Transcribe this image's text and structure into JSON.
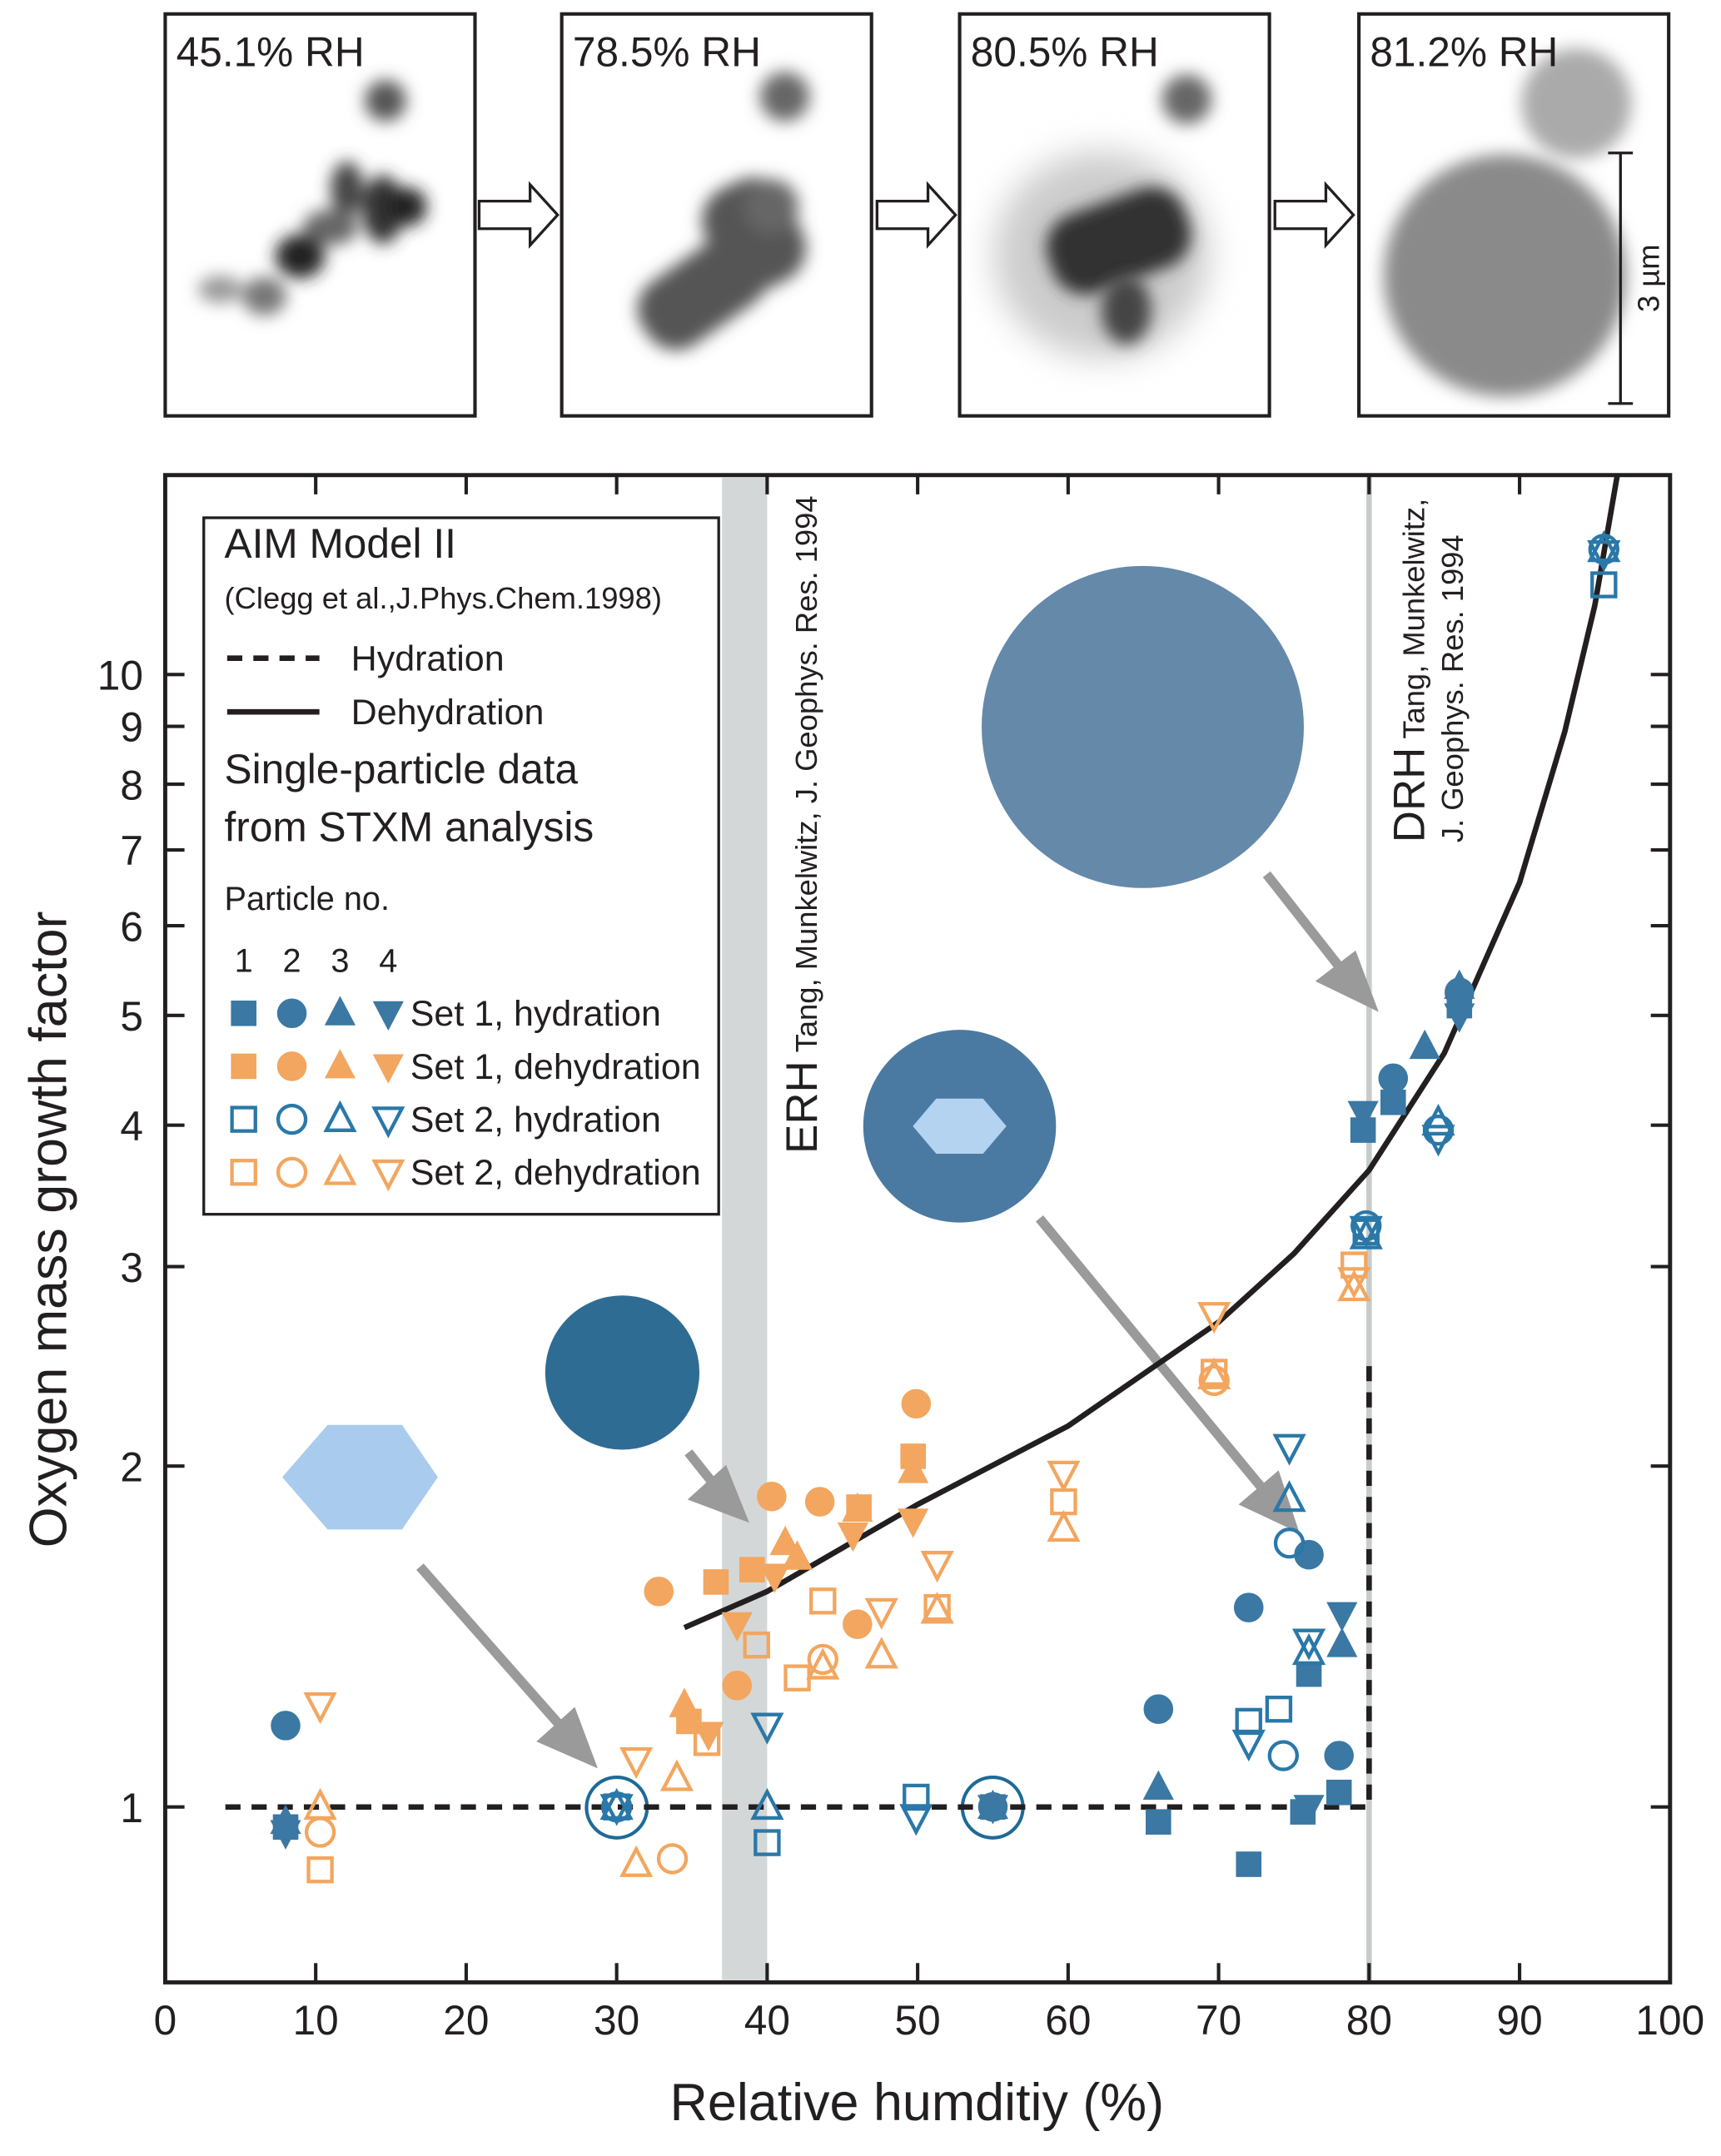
{
  "panels": [
    {
      "label": "45.1% RH"
    },
    {
      "label": "78.5% RH"
    },
    {
      "label": "80.5% RH"
    },
    {
      "label": "81.2% RH",
      "scale_bar": "3 µm"
    }
  ],
  "chart_data": {
    "type": "scatter",
    "xlabel": "Relative humditiy (%)",
    "ylabel": "Oxygen mass growth factor",
    "xlim": [
      0,
      100
    ],
    "xticks": [
      0,
      10,
      20,
      30,
      40,
      50,
      60,
      70,
      80,
      90,
      100
    ],
    "ylim": [
      0.7,
      15
    ],
    "yticks": [
      1,
      2,
      3,
      4,
      5,
      6,
      7,
      8,
      9,
      10
    ],
    "log_y": true,
    "legend": "top-left",
    "markers": [
      "square",
      "circle",
      "triangle",
      "triangle-down"
    ],
    "legend_title": "Single-particle data",
    "legend_subtitle": "from STXM analysis",
    "particle_heading": "Particle no.",
    "particle_numbers": [
      "1",
      "2",
      "3",
      "4"
    ],
    "erh_range": [
      37,
      40
    ],
    "erh_label": "ERH",
    "erh_reference": "Tang, Munkelwitz, J. Geophys. Res. 1994",
    "drh": 80,
    "drh_label": "DRH",
    "drh_reference": [
      "Tang, Munkelwitz,",
      "J. Geophys. Res. 1994"
    ],
    "model": {
      "title": "AIM Model II",
      "citation": "(Clegg et al.,J.Phys.Chem.1998)",
      "curves": [
        {
          "name": "Hydration",
          "style": "dashed",
          "color": "#231f20",
          "x": [
            4,
            80,
            80
          ],
          "values": [
            1,
            1,
            2.5
          ]
        },
        {
          "name": "Dehydration",
          "style": "solid",
          "color": "#231f20",
          "x": [
            34.5,
            40,
            50,
            60,
            70,
            75,
            80,
            85,
            90,
            93,
            95,
            96.5
          ],
          "values": [
            1.44,
            1.55,
            1.85,
            2.17,
            2.68,
            3.08,
            3.65,
            4.63,
            6.55,
            8.9,
            11.5,
            15
          ]
        }
      ]
    },
    "series": [
      {
        "name": "Set 1, hydration",
        "color": "#3b78a3",
        "filled": true,
        "particle": [
          1,
          2,
          3,
          4,
          1,
          2,
          3,
          4,
          2,
          3,
          1,
          2,
          1,
          1,
          1,
          1,
          3,
          4,
          2,
          2,
          4,
          1,
          4,
          1,
          2,
          3,
          1,
          2,
          3,
          4
        ],
        "x": [
          8,
          8,
          8,
          8,
          55,
          55,
          55,
          55,
          66,
          66,
          66,
          72,
          72,
          75.6,
          78,
          76,
          78.2,
          78.2,
          76,
          78,
          76,
          79.6,
          79.6,
          81.6,
          81.6,
          83.7,
          86,
          86,
          86,
          86
        ],
        "values": [
          0.96,
          1.18,
          0.97,
          0.95,
          1.0,
          1.0,
          1.0,
          1.0,
          1.22,
          1.04,
          0.97,
          1.5,
          0.89,
          0.99,
          1.03,
          1.31,
          1.39,
          1.48,
          1.67,
          1.11,
          1.0,
          3.96,
          4.1,
          4.19,
          4.4,
          4.69,
          5.1,
          5.24,
          5.3,
          5.0
        ]
      },
      {
        "name": "Set 1, dehydration",
        "color": "#f2a65f",
        "filled": true,
        "particle": [
          2,
          2,
          2,
          2,
          2,
          2,
          1,
          1,
          1,
          1,
          1,
          3,
          3,
          3,
          3,
          3,
          4,
          4,
          4,
          4,
          4
        ],
        "x": [
          32.8,
          40.3,
          43.5,
          49.9,
          38,
          46,
          36.6,
          49.7,
          46.1,
          34.8,
          39,
          41.2,
          49.7,
          34.5,
          46,
          42,
          38,
          49.7,
          45.7,
          36.1,
          40.5
        ],
        "values": [
          1.55,
          1.88,
          1.86,
          2.27,
          1.28,
          1.45,
          1.58,
          2.04,
          1.84,
          1.19,
          1.62,
          1.71,
          1.98,
          1.23,
          1.83,
          1.66,
          1.45,
          1.79,
          1.74,
          1.16,
          1.6
        ]
      },
      {
        "name": "Set 2, hydration",
        "color": "#2a78a8",
        "filled": false,
        "particle": [
          1,
          2,
          3,
          4,
          1,
          3,
          4,
          1,
          4,
          1,
          1,
          2,
          2,
          3,
          4,
          4,
          3,
          4,
          1,
          2,
          3,
          4,
          2,
          3,
          4,
          1,
          2,
          3,
          4
        ],
        "x": [
          30,
          30,
          30,
          30,
          40,
          40,
          40,
          49.9,
          49.9,
          72,
          74,
          74.3,
          74.7,
          74.7,
          74.7,
          72,
          76,
          76,
          79.8,
          79.8,
          79.8,
          79.8,
          84.6,
          84.6,
          84.6,
          95.6,
          95.6,
          95.6,
          95.6
        ],
        "values": [
          1.0,
          1.0,
          1.0,
          1.0,
          0.93,
          1.0,
          1.18,
          1.02,
          0.98,
          1.19,
          1.22,
          1.11,
          1.71,
          1.87,
          2.08,
          1.14,
          1.37,
          1.4,
          3.22,
          3.26,
          3.19,
          3.24,
          3.96,
          4.02,
          3.9,
          12.0,
          12.9,
          12.9,
          12.8
        ]
      },
      {
        "name": "Set 2, dehydration",
        "color": "#f2a65f",
        "filled": false,
        "particle": [
          1,
          2,
          3,
          4,
          3,
          2,
          4,
          1,
          3,
          1,
          1,
          2,
          3,
          4,
          3,
          4,
          3,
          1,
          1,
          4,
          1,
          3,
          4,
          3,
          1,
          2,
          1,
          3,
          4
        ],
        "x": [
          10.3,
          10.3,
          10.3,
          10.3,
          31.3,
          33.7,
          31.3,
          36,
          34,
          39.3,
          43.7,
          43.7,
          43.7,
          47.6,
          47.6,
          51.3,
          51.3,
          51.3,
          42,
          59.7,
          59.7,
          59.7,
          69.7,
          69.7,
          69.7,
          69.7,
          79,
          79,
          79
        ],
        "values": [
          0.88,
          0.95,
          1.0,
          1.23,
          0.89,
          0.9,
          1.1,
          1.14,
          1.06,
          1.39,
          1.52,
          1.35,
          1.33,
          1.49,
          1.36,
          1.64,
          1.49,
          1.5,
          1.3,
          1.97,
          1.86,
          1.76,
          2.72,
          2.4,
          2.42,
          2.38,
          3.01,
          2.87,
          2.92
        ]
      }
    ]
  }
}
